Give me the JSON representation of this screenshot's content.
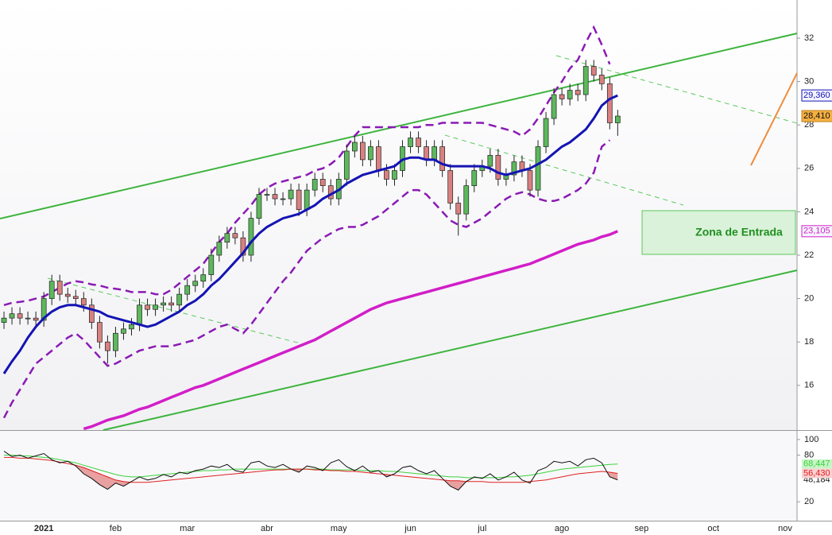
{
  "chart_data": {
    "type": "candlestick",
    "categories": [
      null,
      null,
      null,
      null,
      null,
      "2021",
      null,
      null,
      null,
      null,
      null,
      null,
      null,
      null,
      "feb",
      null,
      null,
      null,
      null,
      null,
      null,
      null,
      null,
      "mar",
      null,
      null,
      null,
      null,
      null,
      null,
      null,
      null,
      null,
      "abr",
      null,
      null,
      null,
      null,
      null,
      null,
      null,
      null,
      "may",
      null,
      null,
      null,
      null,
      null,
      null,
      null,
      null,
      "jun",
      null,
      null,
      null,
      null,
      null,
      null,
      null,
      null,
      "jul",
      null,
      null,
      null,
      null,
      null,
      null,
      null,
      null,
      null,
      "ago",
      null,
      null,
      null,
      null,
      null,
      null,
      null,
      null,
      null,
      "sep",
      null,
      null,
      null,
      null,
      null,
      null,
      null,
      null,
      "oct",
      null,
      null,
      null,
      null,
      null,
      null,
      null,
      null,
      "nov",
      null
    ],
    "open": [
      18.9,
      19.1,
      19.3,
      19.1,
      19.1,
      19.0,
      20.0,
      20.8,
      20.2,
      20.1,
      20.0,
      19.7,
      18.9,
      18.0,
      17.6,
      18.4,
      18.6,
      18.8,
      19.7,
      19.5,
      19.7,
      19.8,
      19.7,
      20.2,
      20.6,
      20.8,
      21.1,
      22.0,
      22.6,
      23.0,
      22.8,
      22.0,
      23.7,
      24.8,
      24.8,
      24.6,
      24.6,
      25.0,
      24.1,
      25.0,
      25.5,
      25.2,
      24.6,
      25.5,
      26.8,
      27.2,
      26.4,
      27.0,
      25.9,
      25.5,
      25.9,
      27.0,
      27.4,
      27.0,
      26.4,
      27.0,
      25.9,
      24.4,
      23.9,
      25.2,
      25.9,
      26.1,
      26.6,
      25.5,
      25.7,
      26.3,
      25.9,
      25.0,
      27.0,
      28.3,
      29.4,
      29.2,
      29.6,
      29.4,
      30.7,
      30.3,
      29.9,
      28.1,
      null,
      null,
      null,
      null,
      null,
      null,
      null,
      null,
      null,
      null,
      null,
      null,
      null,
      null,
      null,
      null,
      null,
      null,
      null,
      null,
      null,
      null
    ],
    "high": [
      19.4,
      19.6,
      19.6,
      19.4,
      19.4,
      20.3,
      21.1,
      21.1,
      20.5,
      20.4,
      20.3,
      20.0,
      19.2,
      18.3,
      18.7,
      18.9,
      19.1,
      20.0,
      20.0,
      20.0,
      20.1,
      20.1,
      20.5,
      20.9,
      21.1,
      21.4,
      22.3,
      22.9,
      23.3,
      23.3,
      23.1,
      24.0,
      25.1,
      25.1,
      25.1,
      24.9,
      25.3,
      25.3,
      25.3,
      25.8,
      25.8,
      25.5,
      25.8,
      27.1,
      27.5,
      27.5,
      27.3,
      27.3,
      26.2,
      26.2,
      27.3,
      27.7,
      27.7,
      27.3,
      27.3,
      27.3,
      26.2,
      24.7,
      25.5,
      26.2,
      26.4,
      26.9,
      26.9,
      26.0,
      26.6,
      26.6,
      26.2,
      27.3,
      28.6,
      29.7,
      29.7,
      29.9,
      29.9,
      31.0,
      31.0,
      30.6,
      30.2,
      28.7,
      null,
      null,
      null,
      null,
      null,
      null,
      null,
      null,
      null,
      null,
      null,
      null,
      null,
      null,
      null,
      null,
      null,
      null,
      null,
      null,
      null,
      null
    ],
    "low": [
      18.6,
      18.8,
      18.8,
      18.8,
      18.7,
      18.7,
      19.7,
      19.9,
      19.8,
      19.7,
      19.4,
      18.6,
      17.7,
      17.0,
      17.3,
      18.1,
      18.3,
      18.5,
      19.2,
      19.2,
      19.4,
      19.4,
      19.4,
      19.9,
      20.3,
      20.5,
      20.8,
      21.7,
      22.3,
      22.5,
      21.7,
      21.7,
      23.4,
      24.5,
      24.3,
      24.3,
      24.3,
      23.8,
      23.8,
      24.7,
      24.9,
      24.3,
      24.3,
      25.2,
      26.5,
      26.1,
      26.1,
      25.6,
      25.2,
      25.2,
      25.6,
      26.7,
      26.7,
      26.1,
      26.1,
      25.6,
      24.1,
      22.9,
      23.6,
      24.9,
      25.6,
      25.8,
      25.2,
      25.2,
      25.4,
      25.6,
      24.7,
      24.7,
      26.7,
      28.0,
      28.9,
      28.9,
      29.1,
      29.1,
      30.0,
      29.6,
      27.8,
      27.5,
      null,
      null,
      null,
      null,
      null,
      null,
      null,
      null,
      null,
      null,
      null,
      null,
      null,
      null,
      null,
      null,
      null,
      null,
      null,
      null,
      null,
      null
    ],
    "close": [
      19.1,
      19.3,
      19.1,
      19.1,
      19.0,
      20.0,
      20.8,
      20.2,
      20.1,
      20.0,
      19.7,
      18.9,
      18.0,
      17.6,
      18.4,
      18.6,
      18.8,
      19.7,
      19.5,
      19.7,
      19.8,
      19.7,
      20.2,
      20.6,
      20.8,
      21.1,
      22.0,
      22.6,
      23.0,
      22.8,
      22.0,
      23.7,
      24.8,
      24.8,
      24.6,
      24.6,
      25.0,
      24.1,
      25.0,
      25.5,
      25.2,
      24.6,
      25.5,
      26.8,
      27.2,
      26.4,
      27.0,
      25.9,
      25.5,
      25.9,
      27.0,
      27.4,
      27.0,
      26.4,
      27.0,
      25.9,
      24.4,
      23.9,
      25.2,
      25.9,
      26.1,
      26.6,
      25.5,
      25.7,
      26.3,
      25.9,
      25.0,
      27.0,
      28.3,
      29.4,
      29.2,
      29.6,
      29.4,
      30.7,
      30.3,
      29.9,
      28.1,
      28.41,
      null,
      null,
      null,
      null,
      null,
      null,
      null,
      null,
      null,
      null,
      null,
      null,
      null,
      null,
      null,
      null,
      null,
      null,
      null,
      null,
      null,
      null
    ],
    "close_label": "28,410",
    "up_color": "#5cb85c",
    "down_color": "#d98080",
    "overlays": [
      {
        "color": "#1414b4",
        "dash": false,
        "width": 3,
        "last_label": "29,360",
        "values": [
          16.54,
          17.1,
          17.6,
          18.2,
          18.7,
          19.1,
          19.4,
          19.6,
          19.7,
          19.7,
          19.6,
          19.5,
          19.4,
          19.2,
          19.1,
          19.0,
          18.9,
          18.8,
          18.7,
          18.8,
          19.0,
          19.2,
          19.4,
          19.7,
          19.9,
          20.2,
          20.6,
          20.9,
          21.3,
          21.7,
          22.1,
          22.6,
          23.0,
          23.3,
          23.5,
          23.7,
          23.8,
          23.9,
          24.1,
          24.3,
          24.6,
          24.8,
          25.0,
          25.3,
          25.5,
          25.7,
          25.8,
          25.9,
          26.0,
          26.1,
          26.4,
          26.5,
          26.5,
          26.4,
          26.4,
          26.2,
          26.1,
          26.1,
          26.1,
          26.1,
          26.1,
          26.0,
          25.8,
          25.7,
          25.8,
          25.9,
          26.0,
          26.2,
          26.4,
          26.7,
          27.0,
          27.2,
          27.5,
          27.8,
          28.3,
          28.9,
          29.2,
          29.36,
          null,
          null,
          null,
          null,
          null,
          null,
          null,
          null,
          null,
          null,
          null,
          null,
          null,
          null,
          null,
          null,
          null,
          null,
          null,
          null,
          null,
          null
        ]
      },
      {
        "color": "#d21ec8",
        "dash": false,
        "width": 3.5,
        "last_label": "23,105",
        "values": [
          null,
          null,
          null,
          null,
          null,
          null,
          null,
          null,
          null,
          null,
          14.0,
          14.1,
          14.25,
          14.4,
          14.5,
          14.6,
          14.75,
          14.9,
          15.0,
          15.15,
          15.3,
          15.45,
          15.6,
          15.75,
          15.9,
          16.0,
          16.15,
          16.3,
          16.45,
          16.6,
          16.75,
          16.9,
          17.05,
          17.2,
          17.35,
          17.5,
          17.65,
          17.8,
          17.95,
          18.1,
          18.3,
          18.5,
          18.7,
          18.9,
          19.1,
          19.3,
          19.5,
          19.65,
          19.8,
          19.9,
          20.0,
          20.1,
          20.2,
          20.3,
          20.4,
          20.5,
          20.6,
          20.7,
          20.8,
          20.9,
          21.0,
          21.1,
          21.2,
          21.3,
          21.4,
          21.5,
          21.6,
          21.75,
          21.9,
          22.05,
          22.2,
          22.35,
          22.5,
          22.6,
          22.7,
          22.85,
          22.95,
          23.105,
          null,
          null,
          null,
          null,
          null,
          null,
          null,
          null,
          null,
          null,
          null,
          null,
          null,
          null,
          null,
          null,
          null,
          null,
          null,
          null,
          null,
          null
        ]
      },
      {
        "color": "#8a1ab4",
        "dash": true,
        "width": 2.5,
        "values": [
          19.7,
          19.8,
          19.85,
          19.9,
          20.0,
          20.1,
          20.3,
          20.5,
          20.7,
          20.8,
          20.75,
          20.65,
          20.6,
          20.5,
          20.45,
          20.4,
          20.3,
          20.3,
          20.3,
          20.2,
          20.2,
          20.4,
          20.7,
          21.0,
          21.3,
          21.6,
          22.1,
          22.6,
          23.0,
          23.5,
          23.9,
          24.3,
          24.8,
          25.1,
          25.3,
          25.4,
          25.5,
          25.6,
          25.7,
          25.9,
          26.0,
          26.2,
          26.5,
          27.0,
          27.5,
          27.9,
          27.9,
          27.9,
          27.9,
          27.9,
          27.9,
          27.9,
          27.9,
          28.0,
          28.0,
          28.1,
          28.1,
          28.1,
          28.1,
          28.1,
          28.1,
          28.0,
          27.9,
          27.8,
          27.7,
          27.5,
          27.8,
          28.3,
          28.9,
          29.5,
          30.0,
          30.6,
          31.0,
          31.8,
          32.5,
          31.7,
          30.8,
          null,
          null,
          null,
          null,
          null,
          null,
          null,
          null,
          null,
          null,
          null,
          null,
          null,
          null,
          null,
          null,
          null,
          null,
          null,
          null,
          null,
          null,
          null
        ]
      },
      {
        "color": "#8a1ab4",
        "dash": true,
        "width": 2.5,
        "values": [
          14.5,
          15.2,
          15.8,
          16.4,
          17.0,
          17.3,
          17.6,
          17.9,
          18.2,
          18.4,
          18.1,
          17.7,
          17.3,
          16.9,
          17.0,
          17.2,
          17.4,
          17.6,
          17.7,
          17.8,
          17.8,
          17.8,
          17.9,
          18.0,
          18.1,
          18.3,
          18.5,
          18.7,
          18.8,
          18.6,
          18.4,
          18.8,
          19.3,
          19.8,
          20.3,
          20.8,
          21.2,
          21.7,
          22.2,
          22.5,
          22.8,
          23.0,
          23.2,
          23.3,
          23.3,
          23.4,
          23.6,
          23.8,
          24.1,
          24.4,
          24.7,
          25.0,
          25.0,
          24.8,
          24.4,
          24.0,
          23.6,
          23.4,
          23.3,
          23.5,
          23.7,
          24.0,
          24.3,
          24.6,
          24.8,
          24.9,
          24.8,
          24.6,
          24.5,
          24.5,
          24.6,
          24.8,
          25.0,
          25.3,
          25.8,
          27.0,
          27.3,
          null,
          null,
          null,
          null,
          null,
          null,
          null,
          null,
          null,
          null,
          null,
          null,
          null,
          null,
          null,
          null,
          null,
          null,
          null,
          null,
          null,
          null,
          null
        ]
      }
    ],
    "ylim": [
      13.94,
      33.76
    ],
    "yticks": [
      16,
      18,
      20,
      22,
      24,
      26,
      28,
      30,
      32
    ],
    "annotation": "Zona de Entrada",
    "oscillator": {
      "ylim": [
        -4.3,
        111.1
      ],
      "yticks": [
        20,
        80,
        100
      ],
      "fill_color": "#e8a0a0",
      "series": [
        {
          "color": "#111111",
          "label_bg": "#ffffff",
          "last_label": "48,184",
          "values": [
            85,
            78,
            80,
            76,
            79,
            82,
            74,
            70,
            72,
            66,
            56,
            50,
            42,
            36,
            44,
            40,
            46,
            52,
            48,
            50,
            55,
            52,
            58,
            56,
            60,
            62,
            66,
            64,
            68,
            60,
            58,
            70,
            72,
            66,
            64,
            68,
            62,
            58,
            66,
            64,
            60,
            70,
            74,
            65,
            60,
            66,
            58,
            60,
            52,
            56,
            64,
            66,
            60,
            56,
            60,
            50,
            40,
            35,
            46,
            52,
            50,
            56,
            48,
            52,
            58,
            48,
            44,
            60,
            64,
            72,
            70,
            72,
            66,
            74,
            76,
            70,
            52,
            48.184,
            null,
            null,
            null,
            null,
            null,
            null,
            null,
            null,
            null,
            null,
            null,
            null,
            null,
            null,
            null,
            null,
            null,
            null,
            null,
            null,
            null,
            null
          ]
        },
        {
          "color": "#3cd23c",
          "label_bg": "#c8f5c8",
          "last_label": "68,447",
          "values": [
            80,
            80,
            79,
            79,
            78,
            77,
            76,
            74,
            72,
            70,
            67,
            64,
            61,
            58,
            55,
            53,
            52,
            52,
            53,
            54,
            55,
            56,
            57,
            58,
            59,
            60,
            60,
            61,
            61,
            62,
            62,
            62,
            62,
            62,
            62,
            62,
            62,
            62,
            62,
            62,
            62,
            61,
            61,
            61,
            61,
            60,
            60,
            60,
            59,
            59,
            58,
            57,
            56,
            55,
            54,
            53,
            52,
            52,
            51,
            51,
            51,
            51,
            51,
            52,
            52,
            53,
            54,
            56,
            58,
            60,
            62,
            63,
            64,
            65,
            66,
            67,
            68,
            68.447,
            null,
            null,
            null,
            null,
            null,
            null,
            null,
            null,
            null,
            null,
            null,
            null,
            null,
            null,
            null,
            null,
            null,
            null,
            null,
            null,
            null,
            null
          ]
        },
        {
          "color": "#e02020",
          "label_bg": "#fbd0d0",
          "last_label": "56,430",
          "values": [
            77,
            77,
            76,
            76,
            75,
            74,
            73,
            71,
            69,
            67,
            64,
            60,
            56,
            52,
            48,
            46,
            45,
            45,
            45,
            46,
            47,
            48,
            49,
            50,
            51,
            52,
            53,
            54,
            55,
            56,
            57,
            58,
            59,
            60,
            61,
            61,
            62,
            62,
            62,
            61,
            61,
            60,
            60,
            59,
            59,
            58,
            57,
            56,
            55,
            54,
            53,
            52,
            51,
            50,
            49,
            48,
            47,
            47,
            46,
            46,
            46,
            45,
            45,
            45,
            45,
            45,
            46,
            47,
            48,
            50,
            52,
            54,
            56,
            57,
            58,
            59,
            58,
            56.43,
            null,
            null,
            null,
            null,
            null,
            null,
            null,
            null,
            null,
            null,
            null,
            null,
            null,
            null,
            null,
            null,
            null,
            null,
            null,
            null,
            null,
            null
          ]
        }
      ]
    }
  }
}
